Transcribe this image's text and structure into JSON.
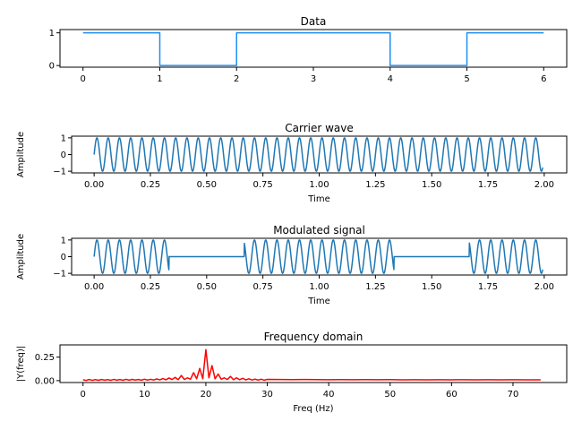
{
  "chart_data": [
    {
      "type": "line",
      "title": "Data",
      "xlabel": "",
      "ylabel": "",
      "xlim": [
        -0.3,
        6.3
      ],
      "ylim": [
        -0.05,
        1.1
      ],
      "xticks": [
        0,
        1,
        2,
        3,
        4,
        5,
        6
      ],
      "xticklabels": [
        "0",
        "1",
        "2",
        "3",
        "4",
        "5",
        "6"
      ],
      "yticks": [
        0,
        1
      ],
      "yticklabels": [
        "0",
        "1"
      ],
      "color": "#1f8ef1",
      "step": true,
      "bits": [
        1,
        0,
        1,
        1,
        0,
        1
      ],
      "series": [
        {
          "x": [
            0,
            1,
            1,
            2,
            2,
            4,
            4,
            5,
            5,
            6
          ],
          "y": [
            1,
            1,
            0,
            0,
            1,
            1,
            0,
            0,
            1,
            1
          ]
        }
      ]
    },
    {
      "type": "line",
      "title": "Carrier wave",
      "xlabel": "Time",
      "ylabel": "Amplitude",
      "xlim": [
        -0.1,
        2.1
      ],
      "ylim": [
        -1.1,
        1.1
      ],
      "xticks": [
        0,
        0.25,
        0.5,
        0.75,
        1.0,
        1.25,
        1.5,
        1.75,
        2.0
      ],
      "xticklabels": [
        "0.00",
        "0.25",
        "0.50",
        "0.75",
        "1.00",
        "1.25",
        "1.50",
        "1.75",
        "2.00"
      ],
      "yticks": [
        -1,
        0,
        1
      ],
      "yticklabels": [
        "−1",
        "0",
        "1"
      ],
      "color": "#1f77b4",
      "signal": {
        "kind": "sine",
        "frequency_hz": 20,
        "t_start": 0,
        "t_end": 1.993
      }
    },
    {
      "type": "line",
      "title": "Modulated signal",
      "xlabel": "Time",
      "ylabel": "Amplitude",
      "xlim": [
        -0.1,
        2.1
      ],
      "ylim": [
        -1.1,
        1.1
      ],
      "xticks": [
        0,
        0.25,
        0.5,
        0.75,
        1.0,
        1.25,
        1.5,
        1.75,
        2.0
      ],
      "xticklabels": [
        "0.00",
        "0.25",
        "0.50",
        "0.75",
        "1.00",
        "1.25",
        "1.50",
        "1.75",
        "2.00"
      ],
      "yticks": [
        -1,
        0,
        1
      ],
      "yticklabels": [
        "−1",
        "0",
        "1"
      ],
      "color": "#1f77b4",
      "signal": {
        "kind": "ask",
        "frequency_hz": 20,
        "t_start": 0,
        "t_end": 1.993,
        "on_intervals": [
          [
            0,
            0.333
          ],
          [
            0.667,
            1.333
          ],
          [
            1.667,
            2.0
          ]
        ]
      }
    },
    {
      "type": "line",
      "title": "Frequency domain",
      "xlabel": "Freq (Hz)",
      "ylabel": "|Y(freq)|",
      "xlim": [
        -3.75,
        78.75
      ],
      "ylim": [
        -0.02,
        0.38
      ],
      "xticks": [
        0,
        10,
        20,
        30,
        40,
        50,
        60,
        70
      ],
      "xticklabels": [
        "0",
        "10",
        "20",
        "30",
        "40",
        "50",
        "60",
        "70"
      ],
      "yticks": [
        0,
        0.25
      ],
      "yticklabels": [
        "0.00",
        "0.25"
      ],
      "color": "#ff0000",
      "series": [
        {
          "x": [
            0,
            0.5,
            1,
            1.5,
            2,
            2.5,
            3,
            3.5,
            4,
            4.5,
            5,
            5.5,
            6,
            6.5,
            7,
            7.5,
            8,
            8.5,
            9,
            9.5,
            10,
            10.5,
            11,
            11.5,
            12,
            12.5,
            13,
            13.5,
            14,
            14.5,
            15,
            15.5,
            16,
            16.5,
            17,
            17.5,
            18,
            18.5,
            19,
            19.5,
            20,
            20.5,
            21,
            21.5,
            22,
            22.5,
            23,
            23.5,
            24,
            24.5,
            25,
            25.5,
            26,
            26.5,
            27,
            27.5,
            28,
            28.5,
            29,
            29.5,
            30,
            32,
            34,
            36,
            38,
            40,
            42,
            44,
            46,
            48,
            50,
            52,
            54,
            56,
            58,
            60,
            62,
            64,
            66,
            68,
            70,
            72,
            74.5
          ],
          "y": [
            0.01,
            0.002,
            0.012,
            0.003,
            0.011,
            0.004,
            0.012,
            0.005,
            0.011,
            0.004,
            0.013,
            0.005,
            0.012,
            0.004,
            0.014,
            0.005,
            0.013,
            0.006,
            0.012,
            0.005,
            0.015,
            0.006,
            0.014,
            0.007,
            0.018,
            0.008,
            0.022,
            0.009,
            0.028,
            0.012,
            0.035,
            0.01,
            0.055,
            0.012,
            0.03,
            0.015,
            0.085,
            0.02,
            0.13,
            0.02,
            0.33,
            0.03,
            0.16,
            0.02,
            0.07,
            0.015,
            0.03,
            0.012,
            0.045,
            0.01,
            0.03,
            0.01,
            0.025,
            0.008,
            0.02,
            0.007,
            0.016,
            0.006,
            0.015,
            0.005,
            0.013,
            0.012,
            0.011,
            0.012,
            0.011,
            0.01,
            0.011,
            0.01,
            0.011,
            0.01,
            0.011,
            0.009,
            0.01,
            0.009,
            0.01,
            0.009,
            0.01,
            0.009,
            0.01,
            0.009,
            0.01,
            0.009,
            0.008
          ]
        }
      ]
    }
  ]
}
